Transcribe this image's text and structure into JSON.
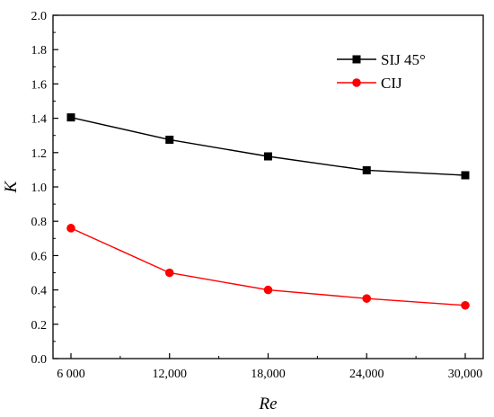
{
  "chart_data": {
    "type": "line",
    "xlabel": "Re",
    "ylabel": "K",
    "x": [
      6000,
      12000,
      18000,
      24000,
      30000
    ],
    "x_tick_labels": [
      "6 000",
      "12,000",
      "18,000",
      "24,000",
      "30,000"
    ],
    "ylim": [
      0.0,
      2.0
    ],
    "y_ticks": [
      0.0,
      0.2,
      0.4,
      0.6,
      0.8,
      1.0,
      1.2,
      1.4,
      1.6,
      1.8,
      2.0
    ],
    "y_tick_labels": [
      "0.0",
      "0.2",
      "0.4",
      "0.6",
      "0.8",
      "1.0",
      "1.2",
      "1.4",
      "1.6",
      "1.8",
      "2.0"
    ],
    "grid": false,
    "legend_position": "top-right",
    "series": [
      {
        "name": "SIJ 45°",
        "color": "#000000",
        "marker": "square",
        "values": [
          1.405,
          1.275,
          1.178,
          1.097,
          1.068
        ]
      },
      {
        "name": "CIJ",
        "color": "#ff0000",
        "marker": "circle",
        "values": [
          0.76,
          0.5,
          0.4,
          0.35,
          0.31
        ]
      }
    ]
  }
}
